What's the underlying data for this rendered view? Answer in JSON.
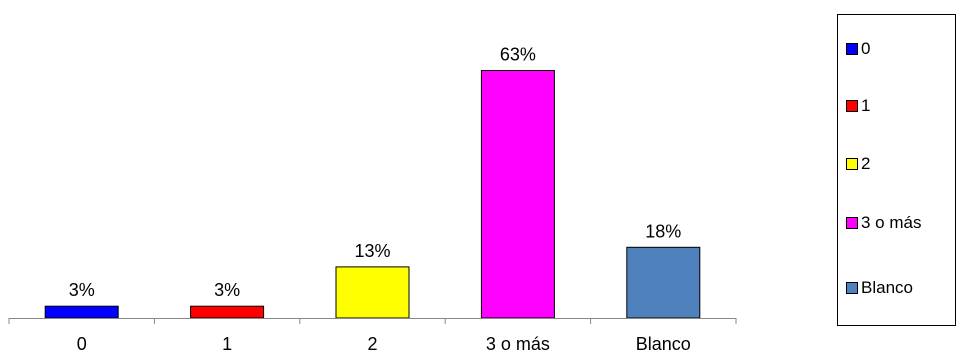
{
  "chart_data": {
    "type": "bar",
    "title": "",
    "xlabel": "",
    "ylabel": "",
    "categories": [
      "0",
      "1",
      "2",
      "3 o más",
      "Blanco"
    ],
    "values": [
      3,
      3,
      13,
      63,
      18
    ],
    "data_labels": [
      "3%",
      "3%",
      "13%",
      "63%",
      "18%"
    ],
    "colors": [
      "#0000FF",
      "#FF0000",
      "#FFFF00",
      "#FF00FF",
      "#4F81BD"
    ],
    "ylim": [
      0,
      70
    ],
    "grid": false,
    "legend_position": "right",
    "legend": [
      "0",
      "1",
      "2",
      "3 o más",
      "Blanco"
    ]
  }
}
